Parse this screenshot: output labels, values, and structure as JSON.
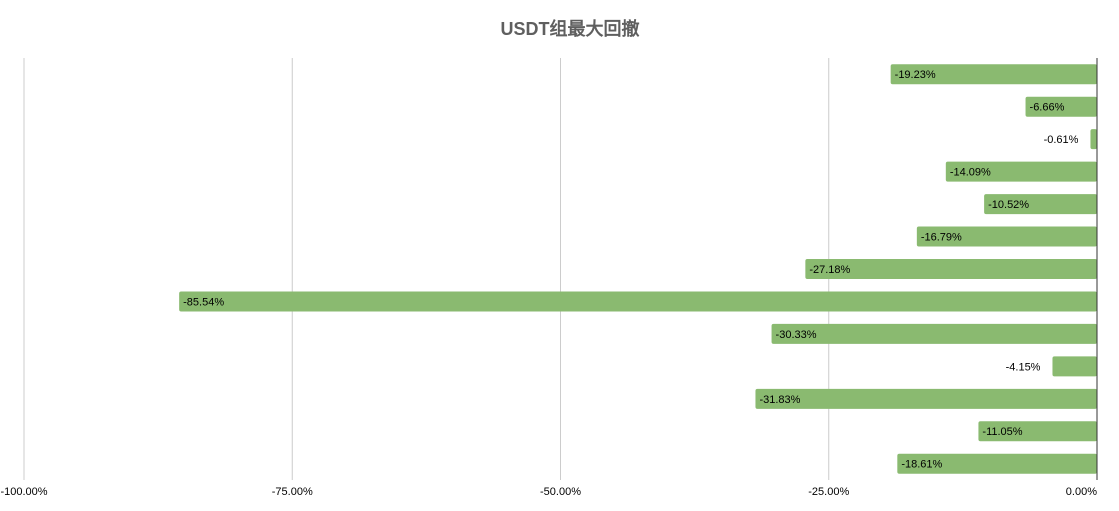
{
  "chart_data": {
    "type": "bar",
    "orientation": "horizontal",
    "title": "USDT组最大回撤",
    "categories": [
      null,
      null,
      null,
      null,
      null,
      null,
      null,
      null,
      null,
      null,
      null,
      null,
      null
    ],
    "values": [
      -19.23,
      -6.66,
      -0.61,
      -14.09,
      -10.52,
      -16.79,
      -27.18,
      -85.54,
      -30.33,
      -4.15,
      -31.83,
      -11.05,
      -18.61
    ],
    "value_labels": [
      "-19.23%",
      "-6.66%",
      "-0.61%",
      "-14.09%",
      "-10.52%",
      "-16.79%",
      "-27.18%",
      "-85.54%",
      "-30.33%",
      "-4.15%",
      "-31.83%",
      "-11.05%",
      "-18.61%"
    ],
    "color": "#8aba70",
    "xlim": [
      -100,
      0
    ],
    "xticks": [
      {
        "value": -100,
        "label": "-100.00%"
      },
      {
        "value": -75,
        "label": "-75.00%"
      },
      {
        "value": -50,
        "label": "-50.00%"
      },
      {
        "value": -25,
        "label": "-25.00%"
      },
      {
        "value": 0,
        "label": "0.00%"
      }
    ],
    "grid": true
  }
}
